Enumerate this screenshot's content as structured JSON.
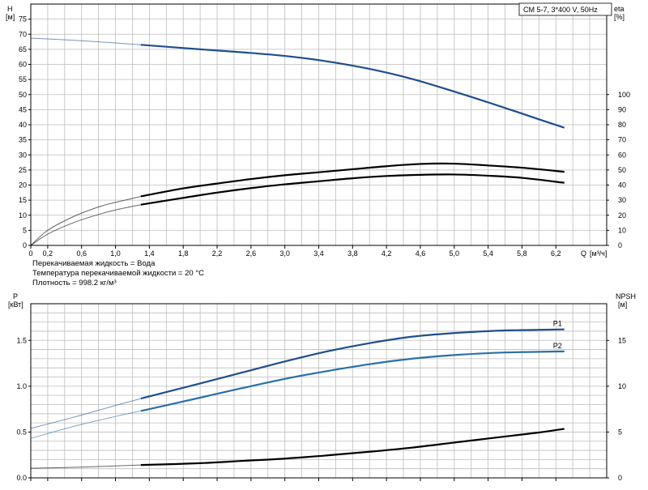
{
  "chart_data": [
    {
      "type": "line",
      "title": "CM 5-7, 3*400 V, 50Hz",
      "xlabel": "Q [м³/ч]",
      "x_axis": {
        "label": "Q",
        "unit": "[м³/ч]",
        "range": [
          0,
          6.8
        ],
        "ticks": [
          0,
          0.2,
          0.6,
          1.0,
          1.4,
          1.8,
          2.2,
          2.6,
          3.0,
          3.4,
          3.8,
          4.2,
          4.6,
          5.0,
          5.4,
          5.8,
          6.2
        ],
        "tick_labels": [
          "0",
          "0,2",
          "0,6",
          "1,0",
          "1,4",
          "1,8",
          "2,2",
          "2,6",
          "3,0",
          "3,4",
          "3,8",
          "4,2",
          "4,6",
          "5,0",
          "5,4",
          "5,8",
          "6,2"
        ]
      },
      "y_left": {
        "label": "H",
        "unit": "[м]",
        "range": [
          0,
          80
        ],
        "ticks": [
          0,
          5,
          10,
          15,
          20,
          25,
          30,
          35,
          40,
          45,
          50,
          55,
          60,
          65,
          70,
          75
        ]
      },
      "y_right": {
        "label": "eta",
        "unit": "[%]",
        "range": [
          0,
          160
        ],
        "ticks": [
          0,
          10,
          20,
          30,
          40,
          50,
          60,
          70,
          80,
          90,
          100
        ]
      },
      "grid": true,
      "operating_range_start": 1.3,
      "series": [
        {
          "name": "H",
          "axis": "left",
          "color": "#1f4e8c",
          "x": [
            0,
            0.5,
            1.0,
            1.3,
            2.0,
            2.5,
            3.0,
            3.5,
            4.0,
            4.5,
            5.0,
            5.5,
            6.0,
            6.3
          ],
          "y": [
            68.7,
            68.0,
            67.1,
            66.5,
            65.0,
            64.0,
            62.8,
            61.0,
            58.5,
            55.2,
            51.0,
            46.5,
            41.8,
            39.0
          ]
        },
        {
          "name": "",
          "axis": "right",
          "color": "#000000",
          "x": [
            0,
            0.2,
            0.5,
            0.8,
            1.0,
            1.3,
            1.8,
            2.2,
            2.6,
            3.0,
            3.4,
            3.8,
            4.2,
            4.6,
            5.0,
            5.4,
            5.8,
            6.3
          ],
          "y": [
            0,
            10,
            19,
            25.5,
            28.5,
            32.5,
            37.8,
            41,
            44,
            46.5,
            48.5,
            50.5,
            52.5,
            54,
            54.2,
            53,
            51.5,
            48.8
          ]
        },
        {
          "name": "",
          "axis": "right",
          "color": "#000000",
          "x": [
            0,
            0.2,
            0.5,
            0.8,
            1.0,
            1.3,
            1.8,
            2.2,
            2.6,
            3.0,
            3.4,
            3.8,
            4.2,
            4.6,
            5.0,
            5.4,
            5.8,
            6.3
          ],
          "y": [
            0,
            7.5,
            15,
            20.5,
            23.5,
            27,
            31.5,
            35,
            38,
            40.5,
            42.5,
            44.5,
            46,
            46.8,
            47,
            46.2,
            44.8,
            41.5
          ]
        }
      ]
    },
    {
      "type": "line",
      "x_axis": {
        "range": [
          0,
          6.8
        ]
      },
      "y_left": {
        "label": "P",
        "unit": "[кВт]",
        "range": [
          0,
          1.9
        ],
        "ticks": [
          0,
          0.5,
          1.0,
          1.5
        ],
        "tick_labels": [
          "0.0",
          "0.5",
          "1.0",
          "1.5"
        ]
      },
      "y_right": {
        "label": "NPSH",
        "unit": "[м]",
        "range": [
          0,
          19
        ],
        "ticks": [
          0,
          5,
          10,
          15
        ],
        "tick_labels": [
          "0",
          "5",
          "10",
          "15"
        ]
      },
      "grid": true,
      "operating_range_start": 1.3,
      "series": [
        {
          "name": "P1",
          "axis": "left",
          "color": "#1f4e8c",
          "x": [
            0,
            0.5,
            1.0,
            1.3,
            2.0,
            2.5,
            3.0,
            3.5,
            4.0,
            4.5,
            5.0,
            5.5,
            6.0,
            6.3
          ],
          "y": [
            0.54,
            0.66,
            0.79,
            0.865,
            1.03,
            1.15,
            1.27,
            1.38,
            1.47,
            1.54,
            1.58,
            1.605,
            1.615,
            1.62
          ]
        },
        {
          "name": "P2",
          "axis": "left",
          "color": "#2a6fa8",
          "x": [
            0,
            0.5,
            1.0,
            1.3,
            2.0,
            2.5,
            3.0,
            3.5,
            4.0,
            4.5,
            5.0,
            5.5,
            6.0,
            6.3
          ],
          "y": [
            0.43,
            0.56,
            0.67,
            0.73,
            0.875,
            0.98,
            1.08,
            1.165,
            1.24,
            1.3,
            1.34,
            1.365,
            1.375,
            1.38
          ]
        },
        {
          "name": "",
          "axis": "right",
          "color": "#000000",
          "x": [
            0,
            0.5,
            1.0,
            1.3,
            2.0,
            2.5,
            3.0,
            3.5,
            4.0,
            4.5,
            5.0,
            5.5,
            6.0,
            6.3
          ],
          "y": [
            1.05,
            1.15,
            1.3,
            1.4,
            1.6,
            1.85,
            2.1,
            2.45,
            2.85,
            3.3,
            3.85,
            4.4,
            4.95,
            5.35
          ]
        }
      ]
    }
  ],
  "info": {
    "line1": "Перекачиваемая жидкость = Вода",
    "line2": "Температура перекачиваемой жидкости = 20 °C",
    "line3": "Плотность = 998.2 кг/м³"
  }
}
